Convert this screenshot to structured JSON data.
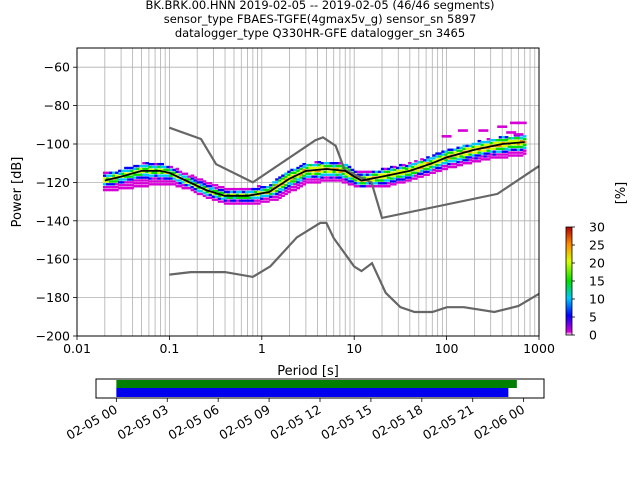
{
  "title": {
    "line1": "BK.BRK.00.HNN   2019-02-05 -- 2019-02-05  (46/46 segments)",
    "line2": "sensor_type FBAES-TGFE(4gmax5v_g) sensor_sn 5897",
    "line3": "datalogger_type Q330HR-GFE datalogger_sn 3465"
  },
  "chart_data": {
    "type": "heatmap",
    "xlabel": "Period [s]",
    "ylabel": "Power [dB]",
    "xscale": "log",
    "xlim": [
      0.01,
      1000
    ],
    "ylim": [
      -200,
      -50
    ],
    "grid": true,
    "x_ticks": [
      "0.01",
      "0.1",
      "1",
      "10",
      "100",
      "1000"
    ],
    "y_ticks": [
      "−200",
      "−180",
      "−160",
      "−140",
      "−120",
      "−100",
      "−80",
      "−60"
    ],
    "colorbar": {
      "label": "[%]",
      "range": [
        0,
        30
      ],
      "ticks": [
        "0",
        "5",
        "10",
        "15",
        "20",
        "25",
        "30"
      ]
    },
    "mode_curve": [
      [
        0.02,
        -119
      ],
      [
        0.03,
        -117
      ],
      [
        0.05,
        -114
      ],
      [
        0.08,
        -114
      ],
      [
        0.1,
        -115
      ],
      [
        0.15,
        -119
      ],
      [
        0.25,
        -124
      ],
      [
        0.4,
        -127
      ],
      [
        0.7,
        -127
      ],
      [
        1.2,
        -125
      ],
      [
        2,
        -118
      ],
      [
        3,
        -114
      ],
      [
        5,
        -113
      ],
      [
        8,
        -114
      ],
      [
        10,
        -117
      ],
      [
        12,
        -119
      ],
      [
        20,
        -117
      ],
      [
        40,
        -114
      ],
      [
        70,
        -110
      ],
      [
        100,
        -107
      ],
      [
        200,
        -103
      ],
      [
        400,
        -100
      ],
      [
        700,
        -99
      ]
    ],
    "spread_curve": [
      [
        0.02,
        -121
      ],
      [
        0.04,
        -119
      ],
      [
        0.06,
        -118
      ],
      [
        0.1,
        -117
      ],
      [
        0.2,
        -121
      ],
      [
        0.4,
        -127
      ],
      [
        0.8,
        -128
      ],
      [
        1.5,
        -125
      ],
      [
        3,
        -117
      ],
      [
        6,
        -115
      ],
      [
        10,
        -118
      ],
      [
        20,
        -119
      ],
      [
        50,
        -114
      ],
      [
        100,
        -109
      ],
      [
        300,
        -104
      ],
      [
        700,
        -102
      ]
    ],
    "nhnm": [
      [
        0.1,
        -91.5
      ],
      [
        0.22,
        -97.4
      ],
      [
        0.32,
        -110.5
      ],
      [
        0.8,
        -120
      ],
      [
        3.8,
        -98
      ],
      [
        4.6,
        -96.5
      ],
      [
        6.3,
        -101
      ],
      [
        7.9,
        -113.5
      ],
      [
        15.4,
        -120
      ],
      [
        20,
        -138.5
      ],
      [
        354.8,
        -126
      ],
      [
        1000,
        -111.5
      ]
    ],
    "nlnm": [
      [
        0.1,
        -168
      ],
      [
        0.17,
        -166.7
      ],
      [
        0.4,
        -166.7
      ],
      [
        0.8,
        -169.2
      ],
      [
        1.24,
        -163.7
      ],
      [
        2.4,
        -148.6
      ],
      [
        4.3,
        -141.1
      ],
      [
        5,
        -141.1
      ],
      [
        6,
        -149
      ],
      [
        10,
        -163.8
      ],
      [
        12,
        -166.2
      ],
      [
        15.6,
        -162.1
      ],
      [
        21.9,
        -177.5
      ],
      [
        31.6,
        -185
      ],
      [
        45,
        -187.5
      ],
      [
        70,
        -187.5
      ],
      [
        101,
        -185
      ],
      [
        154,
        -185
      ],
      [
        328,
        -187.5
      ],
      [
        600,
        -184.4
      ],
      [
        1000,
        -178
      ]
    ],
    "time_axis": {
      "tick_labels": [
        "02-05 00",
        "02-05 03",
        "02-05 06",
        "02-05 09",
        "02-05 12",
        "02-05 15",
        "02-05 18",
        "02-05 21",
        "02-06 00"
      ],
      "range_hours": [
        -1.2,
        25.2
      ],
      "green_bar_hours": [
        0,
        23.6
      ],
      "blue_bar_hours": [
        0,
        23.1
      ],
      "green_color": "#008000",
      "blue_color": "#0000ee"
    },
    "nm_color": "#666666",
    "mode_color": "#000000"
  }
}
